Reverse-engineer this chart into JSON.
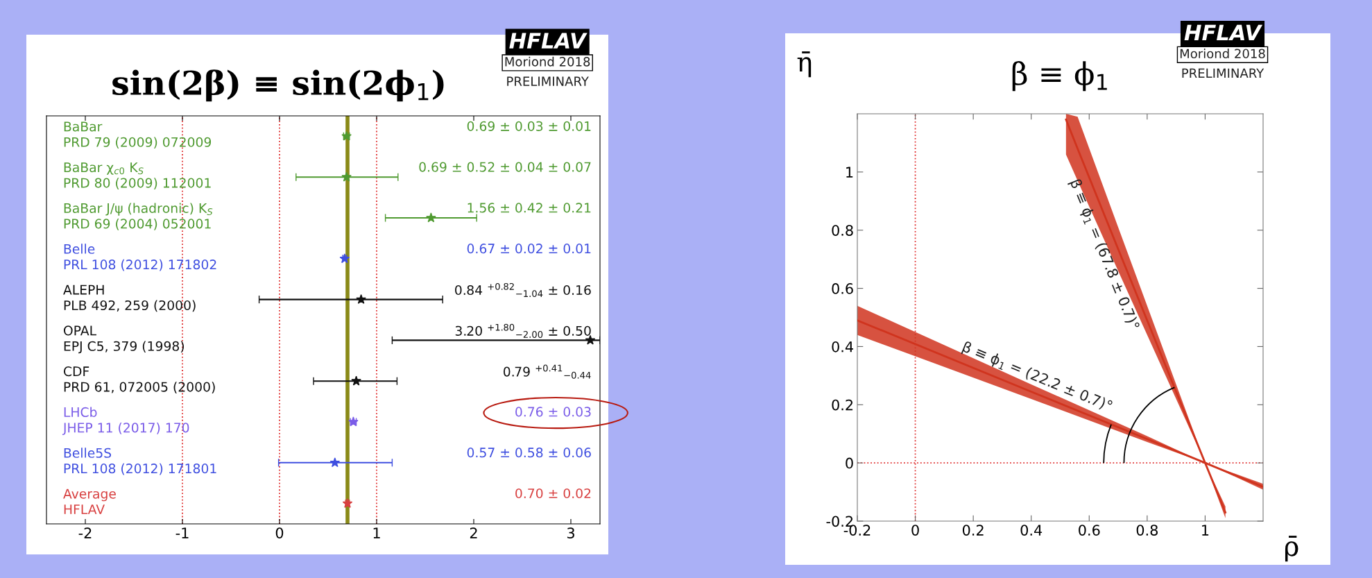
{
  "chart_data": [
    {
      "type": "scatter",
      "orientation": "horizontal",
      "title": "sin(2β) ≡ sin(2ϕ$_{1}$)",
      "categories": [
        "BaBar\nPRD 79 (2009) 072009",
        "BaBar χ$_{c0}$ K$_{S}$\nPRD 80 (2009) 112001",
        "BaBar J/ψ (hadronic) K$_{S}$\nPRD 69 (2004) 052001",
        "Belle\nPRL 108 (2012) 171802",
        "ALEPH\nPLB 492, 259 (2000)",
        "OPAL\nEPJ C5, 379 (1998)",
        "CDF\nPRD 61, 072005 (2000)",
        "LHCb\nJHEP 11 (2017) 170",
        "Belle5S\nPRL 108 (2012) 171801",
        "Average\nHFLAV"
      ],
      "values": [
        0.69,
        0.69,
        1.56,
        0.67,
        0.84,
        3.2,
        0.79,
        0.76,
        0.57,
        0.7
      ],
      "errors": [
        0.03,
        [
          0.17,
          1.22
        ],
        [
          1.09,
          2.03
        ],
        0.02,
        [
          -0.21,
          1.68
        ],
        [
          1.16,
          3.3
        ],
        [
          0.35,
          1.21
        ],
        0.03,
        [
          -0.01,
          1.16
        ],
        0.02
      ],
      "colors": [
        "#4f9a30",
        "#4f9a30",
        "#4f9a30",
        "#3f4fe0",
        "#111111",
        "#111111",
        "#111111",
        "#7a5ce8",
        "#3f4fe0",
        "#d84040"
      ],
      "xlim": [
        -2.4,
        3.3
      ],
      "xticks": [
        -2,
        -1,
        0,
        1,
        2,
        3
      ],
      "tick_labels": "x",
      "marker": "star",
      "grid": false,
      "ref_lines": [
        {
          "axis": "x",
          "value": -1,
          "color": "#e03030",
          "line_style": "dotted"
        },
        {
          "axis": "x",
          "value": 0,
          "color": "#e03030",
          "line_style": "dotted"
        },
        {
          "axis": "x",
          "value": 1,
          "color": "#e03030",
          "line_style": "dotted"
        }
      ],
      "bands": [
        {
          "axis": "x",
          "from": 0.68,
          "to": 0.72,
          "color": "#8a8a18"
        }
      ],
      "annotations": [
        "0.69 ± 0.03 ± 0.01",
        "0.69 ± 0.52 ± 0.04 ± 0.07",
        "1.56 ± 0.42 ± 0.21",
        "0.67 ± 0.02 ± 0.01",
        "0.84 $^{+0.82}$$_{−1.04}$ ± 0.16",
        "3.20 $^{+1.80}$$_{−2.00}$ ± 0.50",
        "0.79 $^{+0.41}$$_{−0.44}$",
        "0.76 ± 0.03",
        "0.57 ± 0.58 ± 0.06",
        "0.70 ± 0.02",
        "HFLAV",
        "Moriond 2018",
        "PRELIMINARY"
      ]
    },
    {
      "type": "line",
      "title": "β ≡ ϕ$_{1}$",
      "xlabel": "ρ̄",
      "ylabel": "η̄",
      "series": [
        {
          "color": "#d0341e",
          "x": [
            -0.2,
            0.4,
            0.8,
            1.0,
            1.2
          ],
          "values": [
            0.49,
            0.245,
            0.082,
            0,
            -0.082
          ],
          "lower": [
            0.44,
            0.22,
            0.072,
            0,
            -0.092
          ],
          "upper": [
            0.54,
            0.27,
            0.092,
            0,
            -0.072
          ]
        },
        {
          "color": "#d0341e",
          "x": [
            0.52,
            0.56,
            0.7,
            0.9,
            1.0,
            1.07
          ],
          "values": [
            1.18,
            1.08,
            0.735,
            0.245,
            0,
            -0.17
          ],
          "lower": [
            1.06,
            0.97,
            0.66,
            0.22,
            0,
            -0.19
          ],
          "upper": [
            1.2,
            1.19,
            0.81,
            0.27,
            0,
            -0.15
          ]
        }
      ],
      "xlim": [
        -0.2,
        1.2
      ],
      "ylim": [
        -0.2,
        1.2
      ],
      "xticks": [
        -0.2,
        0,
        0.2,
        0.4,
        0.6,
        0.8,
        1
      ],
      "yticks": [
        -0.2,
        0,
        0.2,
        0.4,
        0.6,
        0.8,
        1
      ],
      "marker": "none",
      "line_style": "solid",
      "grid": false,
      "ref_lines": [
        {
          "axis": "x",
          "value": 0,
          "color": "#e03030",
          "line_style": "dotted"
        },
        {
          "axis": "y",
          "value": 0,
          "color": "#e03030",
          "line_style": "dotted"
        }
      ],
      "annotations": [
        {
          "text": "β ≡ ϕ$_{1}$ = (22.2 ± 0.7)°",
          "x": 0.4,
          "y": 0.245
        },
        {
          "text": "β ≡ ϕ$_{1}$ = (67.8 ± 0.7)°",
          "x": 0.7,
          "y": 0.735
        },
        "HFLAV",
        "Moriond 2018",
        "PRELIMINARY"
      ]
    }
  ]
}
